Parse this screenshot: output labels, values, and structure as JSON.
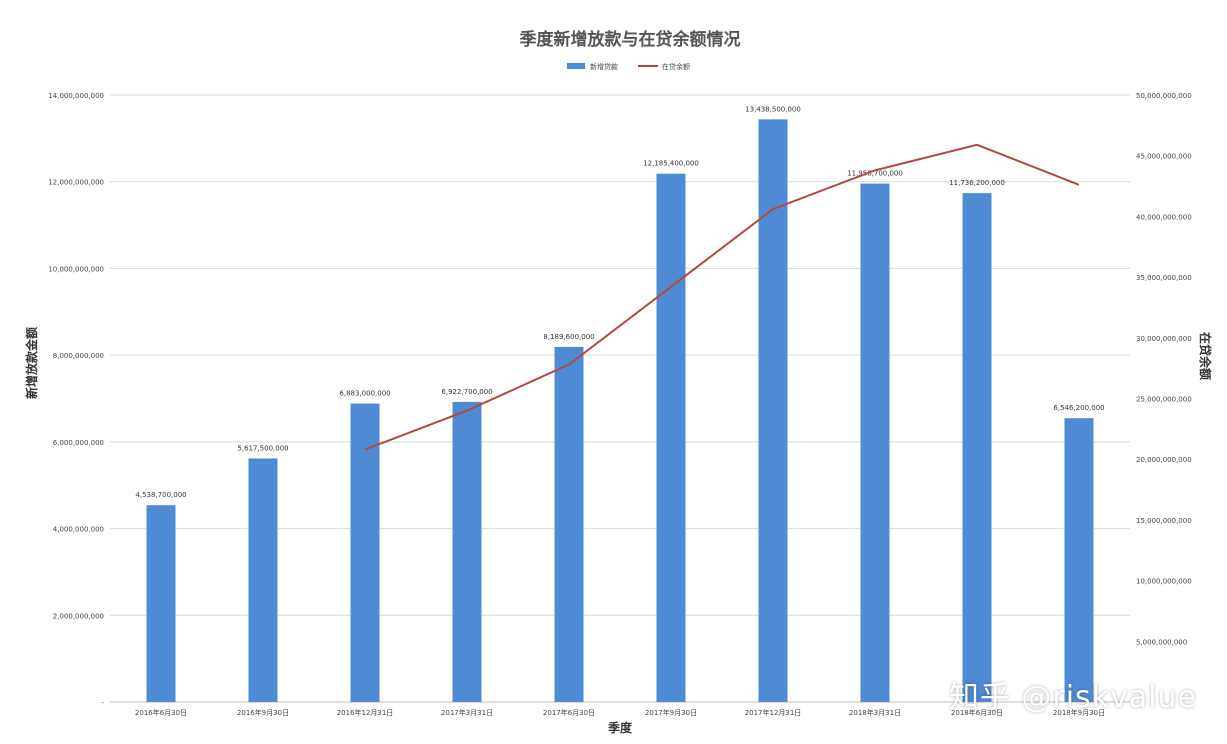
{
  "chart_data": {
    "type": "bar",
    "title": "季度新增放款与在贷余额情况",
    "xlabel": "季度",
    "ylabel": "新增放款金额",
    "y2label": "在贷余额",
    "categories": [
      "2016年6月30日",
      "2016年9月30日",
      "2016年12月31日",
      "2017年3月31日",
      "2017年6月30日",
      "2017年9月30日",
      "2017年12月31日",
      "2018年3月31日",
      "2018年6月30日",
      "2018年9月30日"
    ],
    "series": [
      {
        "name": "新增贷款",
        "kind": "bar",
        "axis": "left",
        "color": "#4f8bd4",
        "values": [
          4538700000,
          5617500000,
          6883000000,
          6922700000,
          8189600000,
          12185400000,
          13438500000,
          11956700000,
          11736200000,
          6546200000
        ],
        "labels": [
          "4,538,700,000",
          "5,617,500,000",
          "6,883,000,000",
          "6,922,700,000",
          "8,189,600,000",
          "12,185,400,000",
          "13,438,500,000",
          "11,956,700,000",
          "11,736,200,000",
          "6,546,200,000"
        ]
      },
      {
        "name": "在贷余额",
        "kind": "line",
        "axis": "right",
        "color": "#b5473f",
        "values": [
          null,
          null,
          20800000000,
          24000000000,
          27800000000,
          34200000000,
          40600000000,
          43800000000,
          45900000000,
          42600000000
        ]
      }
    ],
    "ylim": [
      0,
      14000000000
    ],
    "y2lim": [
      0,
      50000000000
    ],
    "yticks": [
      "-",
      "2,000,000,000",
      "4,000,000,000",
      "6,000,000,000",
      "8,000,000,000",
      "10,000,000,000",
      "12,000,000,000",
      "14,000,000,000"
    ],
    "y2ticks": [
      "5,000,000,000",
      "10,000,000,000",
      "15,000,000,000",
      "20,000,000,000",
      "25,000,000,000",
      "30,000,000,000",
      "35,000,000,000",
      "40,000,000,000",
      "45,000,000,000",
      "50,000,000,000"
    ],
    "grid": true,
    "legend_position": "top-center"
  },
  "watermark": "知乎 @riskvalue"
}
